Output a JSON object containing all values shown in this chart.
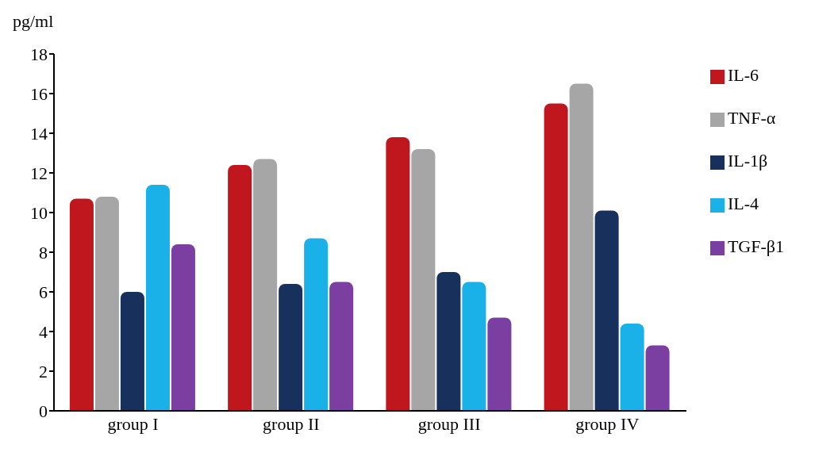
{
  "chart_data": {
    "type": "bar",
    "ylabel": "pg/ml",
    "categories": [
      "group I",
      "group II",
      "group III",
      "group IV"
    ],
    "series": [
      {
        "name": "IL-6",
        "color": "#c0161e",
        "values": [
          10.7,
          12.4,
          13.8,
          15.5
        ]
      },
      {
        "name": "TNF-α",
        "color": "#a6a6a6",
        "values": [
          10.8,
          12.7,
          13.2,
          16.5
        ]
      },
      {
        "name": "IL-1β",
        "color": "#17305c",
        "values": [
          6.0,
          6.4,
          7.0,
          10.1
        ]
      },
      {
        "name": "IL-4",
        "color": "#1ab0e8",
        "values": [
          11.4,
          8.7,
          6.5,
          4.4
        ]
      },
      {
        "name": "TGF-β1",
        "color": "#7a3fa0",
        "values": [
          8.4,
          6.5,
          4.7,
          3.3
        ]
      }
    ],
    "ylim": [
      0,
      18
    ],
    "yticks": [
      0,
      2,
      4,
      6,
      8,
      10,
      12,
      14,
      16,
      18
    ],
    "grid": false,
    "legend": "right"
  }
}
